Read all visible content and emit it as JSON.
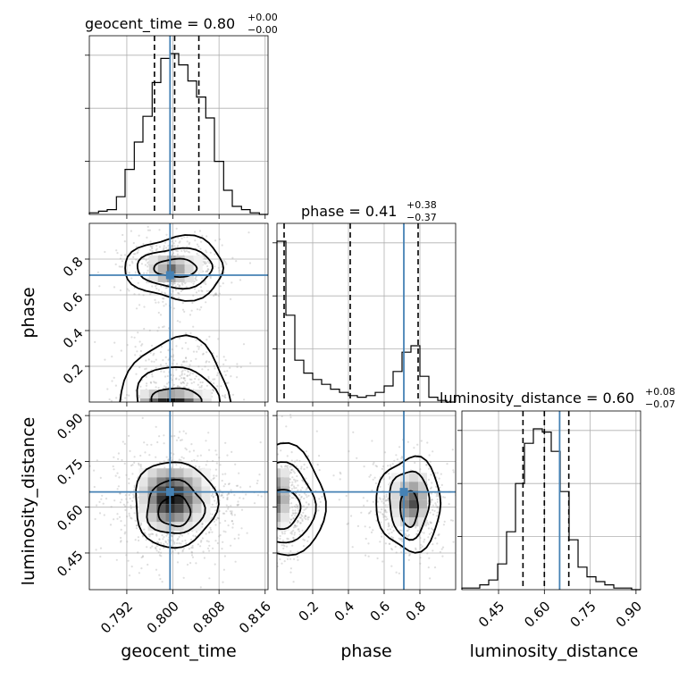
{
  "chart_data": {
    "type": "corner",
    "parameters": [
      "geocent_time",
      "phase",
      "luminosity_distance"
    ],
    "truths": {
      "geocent_time": 0.7995,
      "phase": 0.71,
      "luminosity_distance": 0.65
    },
    "ranges": {
      "geocent_time": [
        0.7855,
        0.8165
      ],
      "phase": [
        0.0,
        1.0
      ],
      "luminosity_distance": [
        0.33,
        0.915
      ]
    },
    "titles": [
      {
        "param": "geocent_time",
        "base": "geocent_time = 0.80",
        "plus": "+0.00",
        "minus": "−0.00"
      },
      {
        "param": "phase",
        "base": "phase = 0.41",
        "plus": "+0.38",
        "minus": "−0.37"
      },
      {
        "param": "luminosity_distance",
        "base": "luminosity_distance = 0.60",
        "plus": "+0.08",
        "minus": "−0.07"
      }
    ],
    "axis_labels": {
      "x": [
        "geocent_time",
        "phase",
        "luminosity_distance"
      ],
      "y": [
        "phase",
        "luminosity_distance"
      ]
    },
    "ticks": {
      "geocent_time": [
        0.792,
        0.8,
        0.808,
        0.816
      ],
      "geocent_time_labels": [
        "0.792",
        "0.800",
        "0.808",
        "0.816"
      ],
      "phase_x": [
        0.2,
        0.4,
        0.6,
        0.8
      ],
      "phase_x_labels": [
        "0.2",
        "0.4",
        "0.6",
        "0.8"
      ],
      "phase_y": [
        0.2,
        0.4,
        0.6,
        0.8
      ],
      "phase_y_labels": [
        "0.2",
        "0.4",
        "0.6",
        "0.8"
      ],
      "luminosity_distance": [
        0.45,
        0.6,
        0.75,
        0.9
      ],
      "luminosity_distance_labels": [
        "0.45",
        "0.60",
        "0.75",
        "0.90"
      ]
    },
    "quantiles": {
      "geocent_time": [
        0.7968,
        0.8003,
        0.8045
      ],
      "phase": [
        0.04,
        0.41,
        0.79
      ],
      "luminosity_distance": [
        0.53,
        0.6,
        0.68
      ]
    },
    "histograms": {
      "geocent_time": {
        "edges": [
          0.7855,
          0.7871,
          0.7886,
          0.7902,
          0.7917,
          0.7933,
          0.7948,
          0.7964,
          0.7979,
          0.7995,
          0.801,
          0.8026,
          0.8041,
          0.8057,
          0.8072,
          0.8088,
          0.8103,
          0.8119,
          0.8134,
          0.815,
          0.8165
        ],
        "counts": [
          1,
          2,
          3,
          11,
          28,
          45,
          61,
          82,
          97,
          100,
          93,
          83,
          73,
          60,
          33,
          15,
          5,
          3,
          1,
          0
        ]
      },
      "phase": {
        "edges": [
          0.0,
          0.05,
          0.1,
          0.15,
          0.2,
          0.25,
          0.3,
          0.35,
          0.4,
          0.45,
          0.5,
          0.55,
          0.6,
          0.65,
          0.7,
          0.75,
          0.8,
          0.85,
          0.9,
          0.95,
          1.0
        ],
        "counts": [
          100,
          54,
          26,
          18,
          14,
          11,
          8,
          6,
          4,
          3,
          4,
          6,
          10,
          19,
          31,
          35,
          16,
          3,
          1,
          0
        ]
      },
      "luminosity_distance": {
        "edges": [
          0.33,
          0.3593,
          0.3885,
          0.4178,
          0.447,
          0.4763,
          0.5055,
          0.5348,
          0.564,
          0.5933,
          0.6225,
          0.6518,
          0.681,
          0.7103,
          0.7395,
          0.7688,
          0.798,
          0.8273,
          0.8565,
          0.8858,
          0.915
        ],
        "counts": [
          1,
          1,
          3,
          6,
          16,
          36,
          66,
          91,
          100,
          98,
          86,
          61,
          31,
          14,
          8,
          5,
          3,
          1,
          1,
          0
        ]
      }
    },
    "contour_levels": 3
  }
}
